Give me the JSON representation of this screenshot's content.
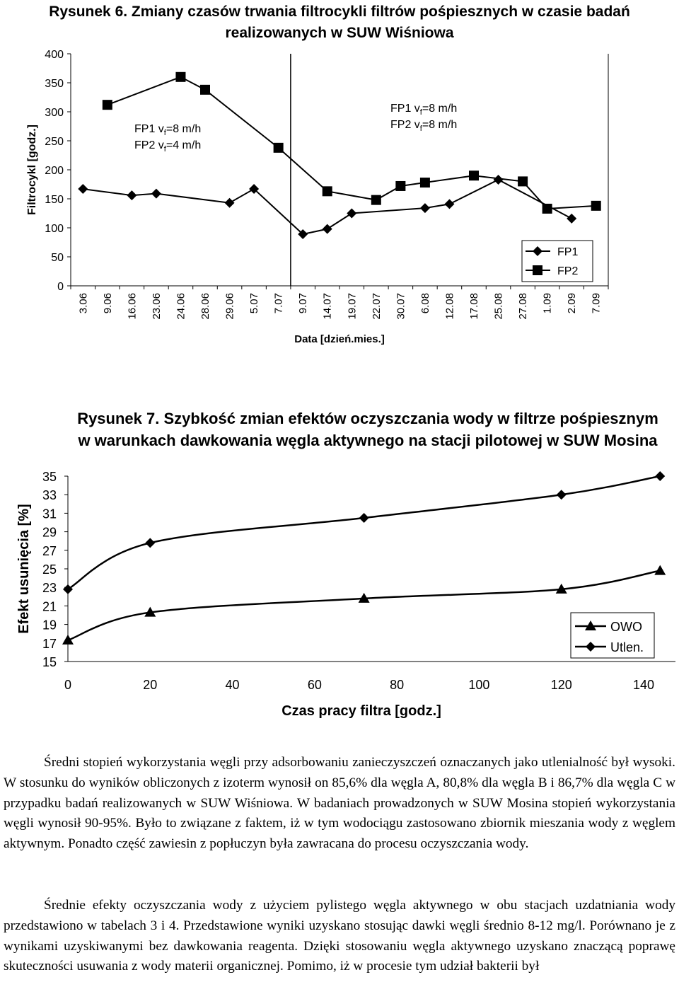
{
  "chart_data": [
    {
      "type": "line",
      "title": "Rysunek 6. Zmiany czasów trwania filtrocykli filtrów pośpiesznych w czasie badań realizowanych w SUW Wiśniowa",
      "xlabel": "Data [dzień.mies.]",
      "ylabel": "Filtrocykl [godz.]",
      "ylim": [
        0,
        400
      ],
      "yticks": [
        0,
        50,
        100,
        150,
        200,
        250,
        300,
        350,
        400
      ],
      "categories": [
        "3.06",
        "9.06",
        "16.06",
        "23.06",
        "24.06",
        "28.06",
        "29.06",
        "5.07",
        "7.07",
        "9.07",
        "14.07",
        "19.07",
        "22.07",
        "30.07",
        "6.08",
        "12.08",
        "17.08",
        "25.08",
        "27.08",
        "1.09",
        "2.09",
        "7.09"
      ],
      "series": [
        {
          "name": "FP1",
          "marker": "diamond",
          "points": [
            [
              "3.06",
              167
            ],
            [
              "16.06",
              156
            ],
            [
              "23.06",
              159
            ],
            [
              "29.06",
              143
            ],
            [
              "5.07",
              167
            ],
            [
              "9.07",
              89
            ],
            [
              "14.07",
              98
            ],
            [
              "19.07",
              125
            ],
            [
              "6.08",
              134
            ],
            [
              "12.08",
              141
            ],
            [
              "25.08",
              183
            ],
            [
              "2.09",
              116
            ]
          ]
        },
        {
          "name": "FP2",
          "marker": "square",
          "points": [
            [
              "9.06",
              312
            ],
            [
              "24.06",
              360
            ],
            [
              "28.06",
              338
            ],
            [
              "7.07",
              238
            ],
            [
              "14.07",
              163
            ],
            [
              "22.07",
              148
            ],
            [
              "30.07",
              172
            ],
            [
              "6.08",
              178
            ],
            [
              "17.08",
              190
            ],
            [
              "27.08",
              180
            ],
            [
              "1.09",
              133
            ],
            [
              "7.09",
              138
            ]
          ]
        }
      ],
      "annotations": {
        "left": {
          "line1": [
            "FP1 v",
            "f",
            "=8 m/h"
          ],
          "line2": [
            "FP2 v",
            "f",
            "=4 m/h"
          ]
        },
        "right": {
          "line1": [
            "FP1 v",
            "f",
            "=8 m/h"
          ],
          "line2": [
            "FP2 v",
            "f",
            "=8 m/h"
          ]
        }
      },
      "divider_after": "7.07",
      "legend": "bottom-right",
      "grid": false
    },
    {
      "type": "line",
      "title": "Rysunek 7. Szybkość zmian efektów oczyszczania wody w filtrze pośpiesznym w warunkach dawkowania węgla aktywnego na stacji pilotowej w SUW Mosina",
      "xlabel": "Czas pracy filtra [godz.]",
      "ylabel": "Efekt usunięcia [%]",
      "xlim": [
        0,
        140
      ],
      "xticks": [
        0,
        20,
        40,
        60,
        80,
        100,
        120,
        140
      ],
      "ylim": [
        15,
        35
      ],
      "yticks": [
        15,
        17,
        19,
        21,
        23,
        25,
        27,
        29,
        31,
        33,
        35
      ],
      "series": [
        {
          "name": "OWO",
          "marker": "triangle",
          "x": [
            0,
            20,
            72,
            120,
            144
          ],
          "y": [
            17.3,
            20.3,
            21.8,
            22.8,
            24.8
          ]
        },
        {
          "name": "Utlen.",
          "marker": "diamond",
          "x": [
            0,
            20,
            72,
            120,
            144
          ],
          "y": [
            22.8,
            27.8,
            30.5,
            33.0,
            35.0
          ]
        }
      ],
      "legend": "bottom-right",
      "grid": false
    }
  ],
  "text": {
    "para1": "Średni stopień wykorzystania węgli przy adsorbowaniu zanieczyszczeń oznaczanych jako utlenialność był wysoki. W stosunku do wyników obliczonych z izoterm wynosił on 85,6% dla węgla A, 80,8% dla węgla B i 86,7% dla węgla C w przypadku badań realizowanych w SUW Wiśniowa. W badaniach prowadzonych w SUW Mosina stopień wykorzystania węgli wynosił 90-95%. Było to związane z faktem, iż w tym wodociągu zastosowano zbiornik mieszania wody z węglem aktywnym. Ponadto część zawiesin z popłuczyn była zawracana do procesu oczyszczania wody.",
    "para2": "Średnie efekty oczyszczania wody z użyciem pylistego węgla aktywnego w obu stacjach uzdatniania wody przedstawiono w tabelach 3 i 4. Przedstawione wyniki uzyskano stosując dawki węgli średnio 8-12 mg/l. Porównano je z wynikami uzyskiwanymi bez dawkowania reagenta. Dzięki stosowaniu węgla aktywnego uzyskano znaczącą poprawę skuteczności usuwania z wody materii organicznej. Pomimo, iż w procesie tym udział bakterii był"
  }
}
